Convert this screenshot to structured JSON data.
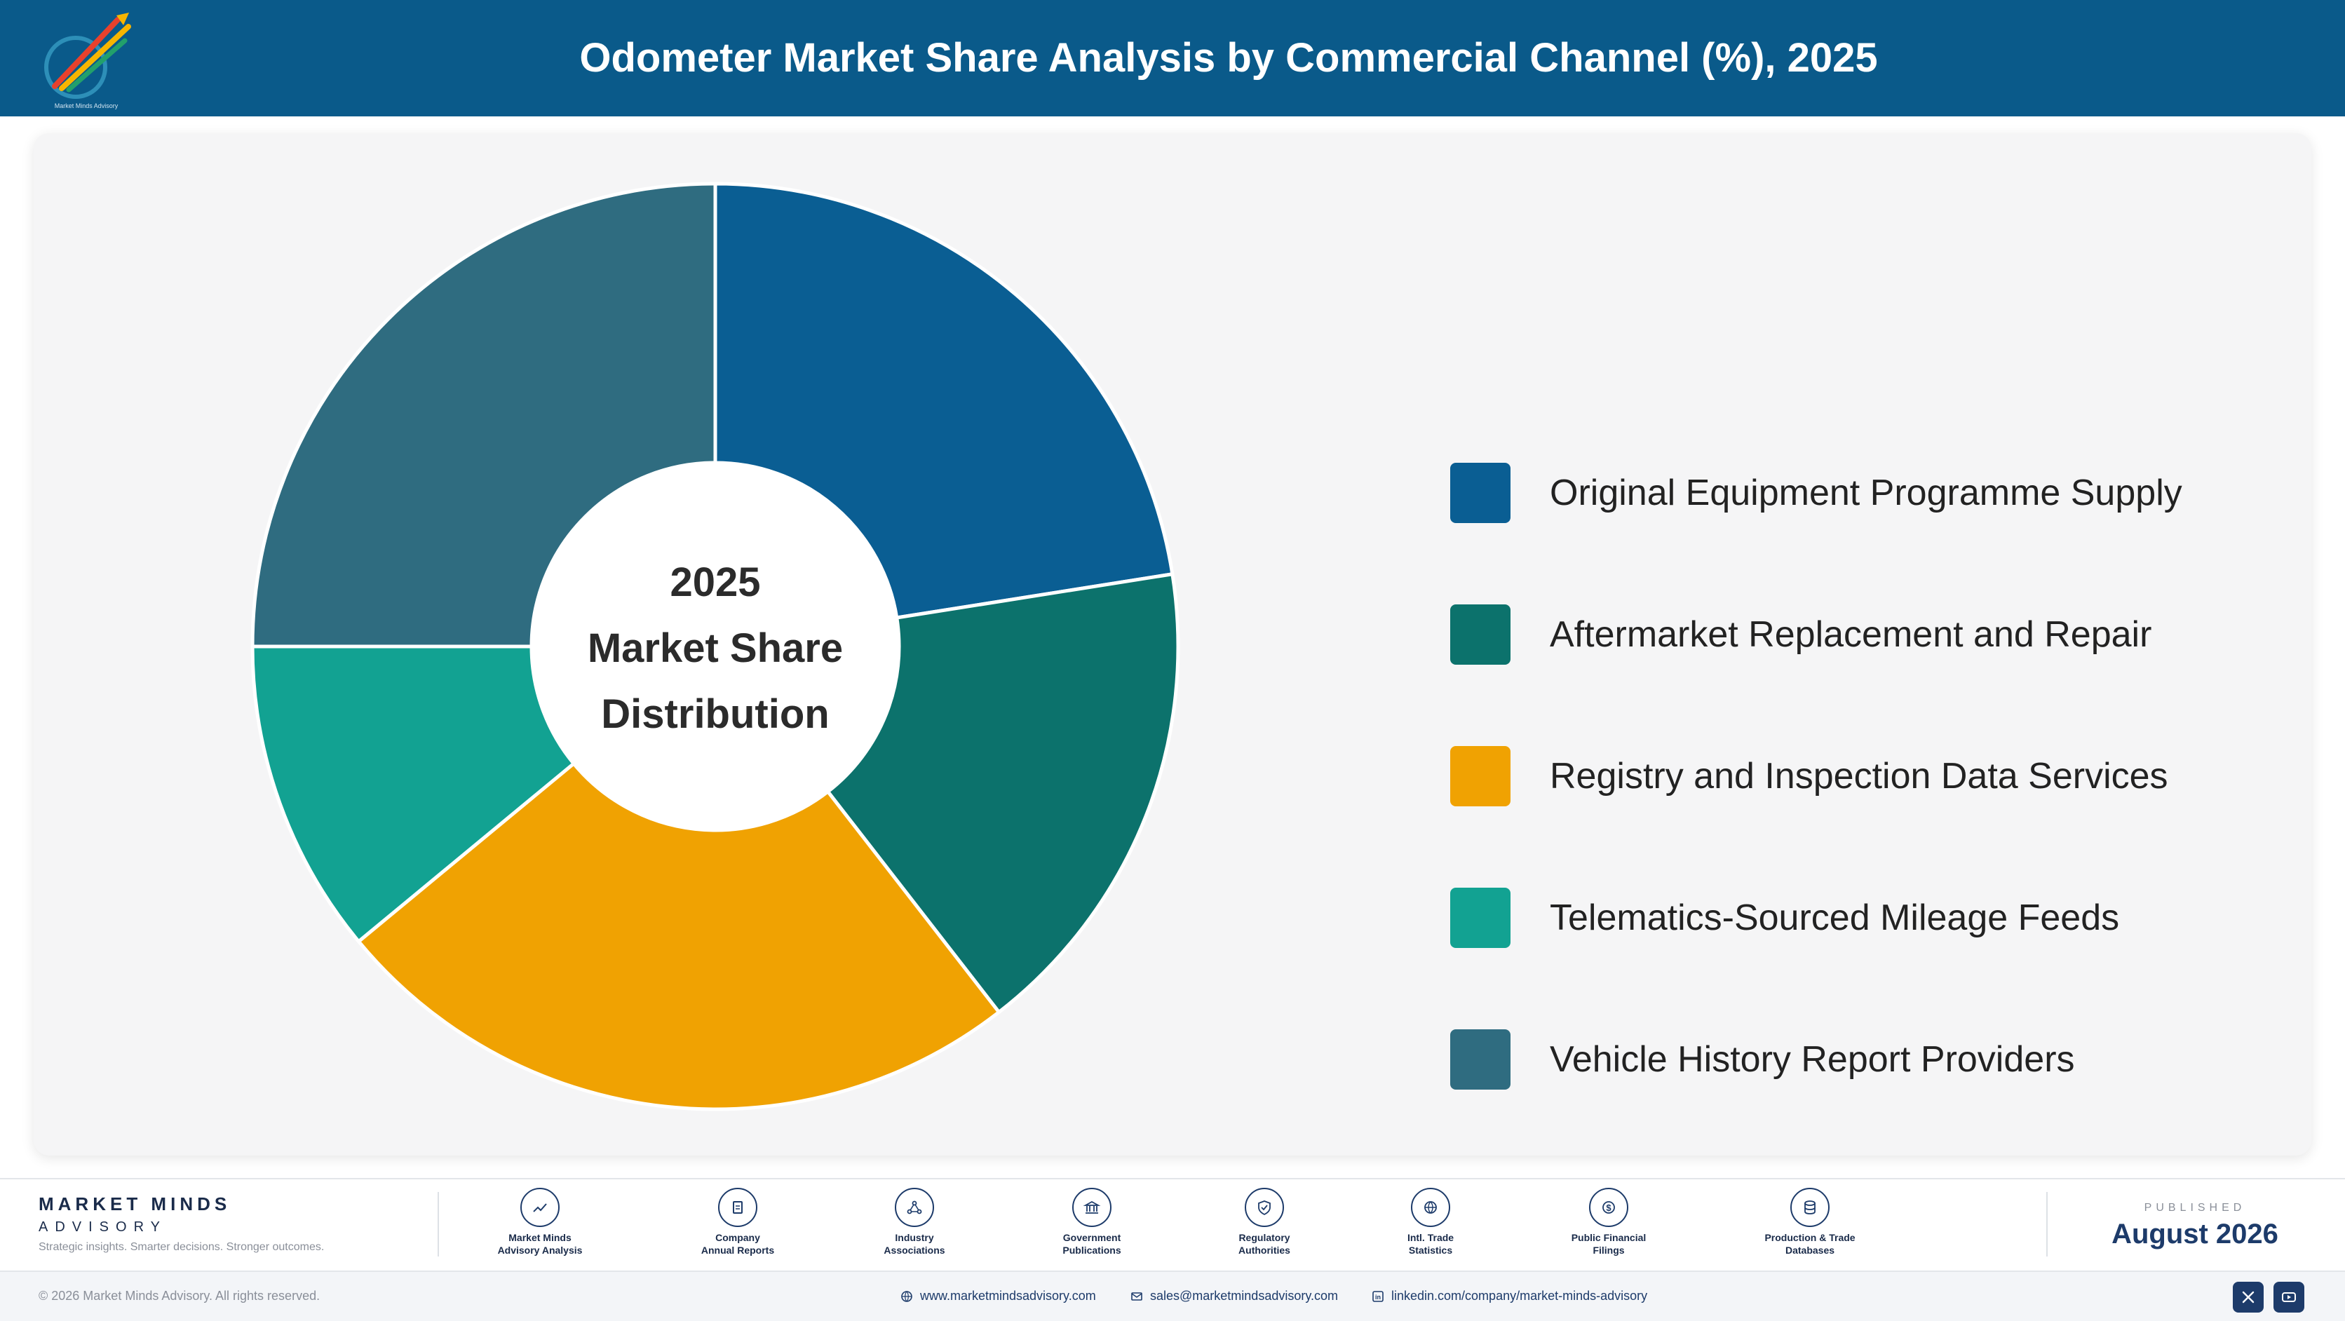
{
  "header": {
    "title": "Odometer Market Share Analysis by Commercial Channel (%), 2025",
    "logo_text": "Market Minds Advisory"
  },
  "chart_data": {
    "type": "pie",
    "variant": "donut",
    "center_text": [
      "2025",
      "Market Share",
      "Distribution"
    ],
    "categories": [
      "Original Equipment Programme Supply",
      "Aftermarket Replacement and Repair",
      "Registry and Inspection Data Services",
      "Telematics-Sourced Mileage Feeds",
      "Vehicle History Report Providers"
    ],
    "values": [
      22.5,
      17.0,
      24.5,
      11.0,
      25.0
    ],
    "colors": [
      "#0a5e93",
      "#0c726c",
      "#f0a202",
      "#12a292",
      "#2f6c80"
    ],
    "legend_position": "right"
  },
  "footer": {
    "brand_name": "MARKET MINDS",
    "brand_sub": "ADVISORY",
    "tagline": "Strategic insights. Smarter decisions. Stronger outcomes.",
    "sources": [
      {
        "line1": "Market Minds",
        "line2": "Advisory Analysis",
        "icon": "trend-chart-icon"
      },
      {
        "line1": "Company",
        "line2": "Annual Reports",
        "icon": "document-icon"
      },
      {
        "line1": "Industry",
        "line2": "Associations",
        "icon": "network-icon"
      },
      {
        "line1": "Government",
        "line2": "Publications",
        "icon": "government-building-icon"
      },
      {
        "line1": "Regulatory",
        "line2": "Authorities",
        "icon": "shield-check-icon"
      },
      {
        "line1": "Intl. Trade",
        "line2": "Statistics",
        "icon": "globe-icon"
      },
      {
        "line1": "Public Financial",
        "line2": "Filings",
        "icon": "currency-icon"
      },
      {
        "line1": "Production & Trade",
        "line2": "Databases",
        "icon": "database-icon"
      }
    ],
    "published_kicker": "PUBLISHED",
    "published_date": "August 2026",
    "copyright": "© 2026 Market Minds Advisory. All rights reserved.",
    "website": "www.marketmindsadvisory.com",
    "email": "sales@marketmindsadvisory.com",
    "linkedin": "linkedin.com/company/market-minds-advisory"
  }
}
